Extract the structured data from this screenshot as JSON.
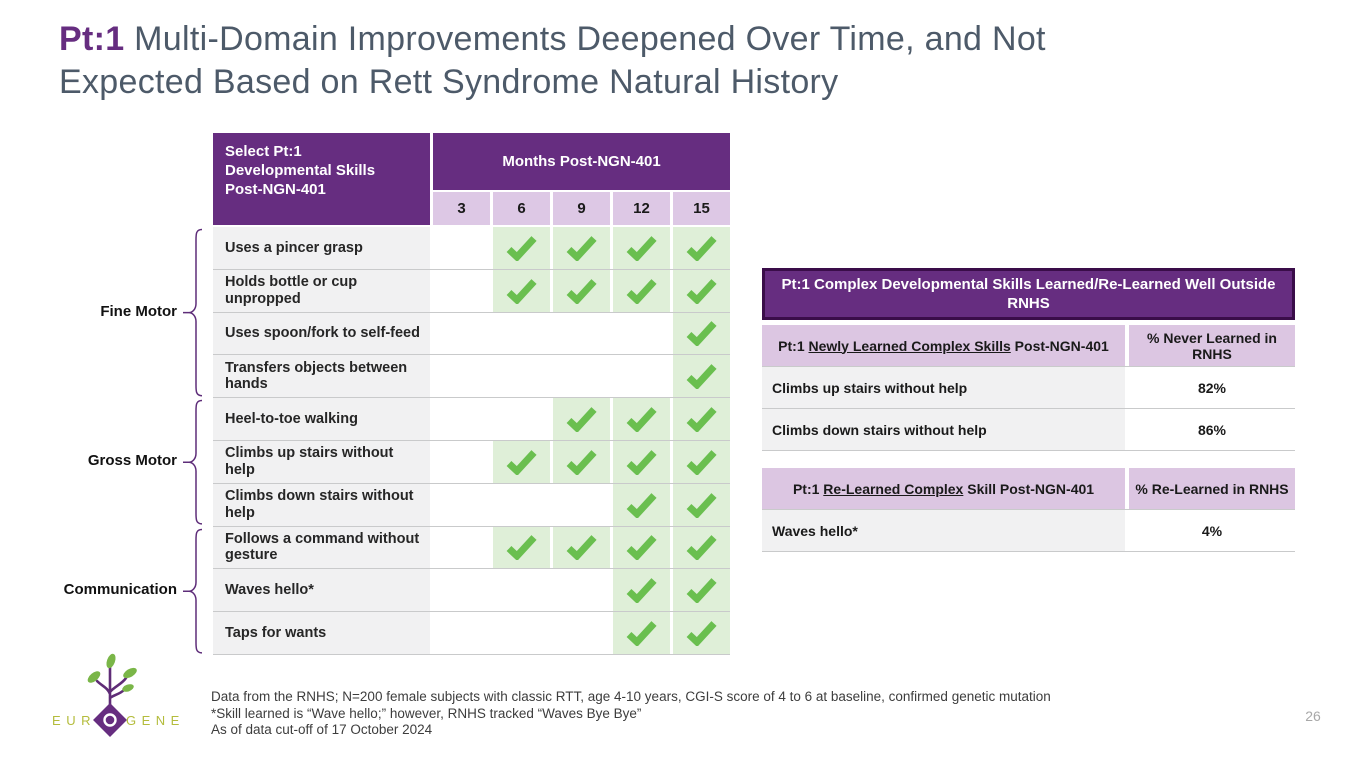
{
  "title": {
    "prefix": "Pt:1",
    "rest": " Multi-Domain Improvements Deepened Over Time, and Not Expected Based on Rett Syndrome Natural History"
  },
  "colors": {
    "accent_purple": "#662D80",
    "banner_border": "#3A0D49",
    "lavender": "#DDC8E5",
    "check_green": "#6ABF4F",
    "check_cell_green": "#DFEFD8",
    "label_gray": "#F1F1F2",
    "title_gray": "#4D5A69",
    "logo_olive": "#B4BC3C"
  },
  "skills_table": {
    "corner_header": "Select Pt:1 Developmental Skills Post-NGN-401",
    "months_header": "Months Post-NGN-401",
    "month_columns": [
      "3",
      "6",
      "9",
      "12",
      "15"
    ],
    "check_icon": "green-checkmark",
    "rows": [
      {
        "skill": "Uses a pincer grasp",
        "checks": [
          false,
          true,
          true,
          true,
          true
        ]
      },
      {
        "skill": "Holds bottle or cup unpropped",
        "checks": [
          false,
          true,
          true,
          true,
          true
        ]
      },
      {
        "skill": "Uses spoon/fork to self-feed",
        "checks": [
          false,
          false,
          false,
          false,
          true
        ]
      },
      {
        "skill": "Transfers objects between hands",
        "checks": [
          false,
          false,
          false,
          false,
          true
        ]
      },
      {
        "skill": "Heel-to-toe walking",
        "checks": [
          false,
          false,
          true,
          true,
          true
        ]
      },
      {
        "skill": "Climbs up stairs without help",
        "checks": [
          false,
          true,
          true,
          true,
          true
        ]
      },
      {
        "skill": "Climbs down stairs without help",
        "checks": [
          false,
          false,
          false,
          true,
          true
        ]
      },
      {
        "skill": "Follows a command without gesture",
        "checks": [
          false,
          true,
          true,
          true,
          true
        ]
      },
      {
        "skill": "Waves hello*",
        "checks": [
          false,
          false,
          false,
          true,
          true
        ]
      },
      {
        "skill": "Taps for wants",
        "checks": [
          false,
          false,
          false,
          true,
          true
        ]
      }
    ]
  },
  "domains": [
    {
      "label": "Fine Motor",
      "rows": 4
    },
    {
      "label": "Gross Motor",
      "rows": 3
    },
    {
      "label": "Communication",
      "rows": 3
    }
  ],
  "right_panel": {
    "banner": "Pt:1 Complex Developmental Skills Learned/Re-Learned Well Outside RNHS",
    "tables": [
      {
        "header_prefix": "Pt:1 ",
        "header_underlined": "Newly Learned Complex Skills",
        "header_suffix": " Post-NGN-401",
        "value_header": "% Never Learned in RNHS",
        "rows": [
          {
            "skill": "Climbs up stairs without help",
            "value": "82%"
          },
          {
            "skill": "Climbs down stairs without help",
            "value": "86%"
          }
        ]
      },
      {
        "header_prefix": "Pt:1 ",
        "header_underlined": "Re-Learned Complex",
        "header_suffix": " Skill Post-NGN-401",
        "value_header": "% Re-Learned in RNHS",
        "rows": [
          {
            "skill": "Waves hello*",
            "value": "4%"
          }
        ]
      }
    ]
  },
  "footnotes": [
    "Data from the RNHS; N=200 female subjects with classic RTT, age 4-10 years, CGI-S score of 4 to 6 at baseline, confirmed genetic mutation",
    "*Skill learned is “Wave hello;” however, RNHS tracked “Waves Bye Bye”",
    "As of data cut-off of 17 October 2024"
  ],
  "logo": {
    "name_left": "NEUR",
    "name_right": "GENE"
  },
  "page_number": "26"
}
